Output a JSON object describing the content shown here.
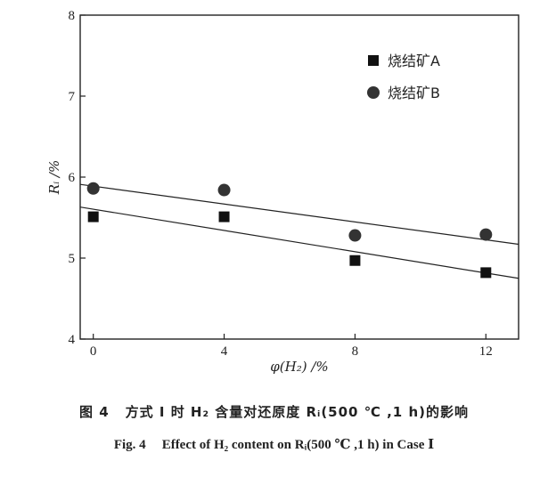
{
  "chart_data": {
    "type": "scatter",
    "xlabel": "φ(H₂) /%",
    "ylabel": "Rᵢ /%",
    "x_ticks": [
      0,
      4,
      8,
      12
    ],
    "y_ticks": [
      4,
      5,
      6,
      7,
      8
    ],
    "xlim": [
      -0.4,
      13.0
    ],
    "ylim": [
      4,
      8
    ],
    "grid": false,
    "legend_position": "top-right",
    "series": [
      {
        "name": "烧结矿A",
        "marker": "square",
        "x": [
          0,
          4,
          8,
          12
        ],
        "y": [
          5.51,
          5.51,
          4.97,
          4.82
        ],
        "fit_line": {
          "x": [
            -0.4,
            13.0
          ],
          "y": [
            5.63,
            4.75
          ]
        }
      },
      {
        "name": "烧结矿B",
        "marker": "circle",
        "x": [
          0,
          4,
          8,
          12
        ],
        "y": [
          5.86,
          5.84,
          5.28,
          5.29
        ],
        "fit_line": {
          "x": [
            -0.4,
            13.0
          ],
          "y": [
            5.91,
            5.17
          ]
        }
      }
    ]
  },
  "caption": {
    "cn_label": "图 4",
    "cn_text": "方式 Ⅰ 时 H₂ 含量对还原度 Rᵢ(500 ℃ ,1 h)的影响",
    "en_label": "Fig. 4",
    "en_text": "Effect of H₂ content on Rᵢ(500 ℃ ,1 h) in Case Ⅰ"
  }
}
